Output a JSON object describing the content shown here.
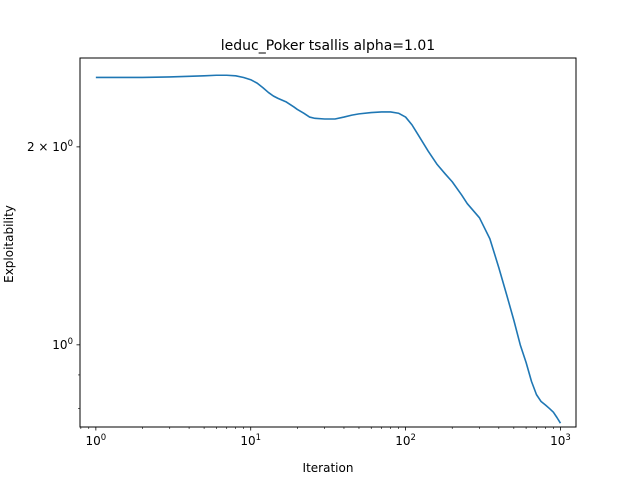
{
  "chart_data": {
    "type": "line",
    "title": "leduc_Poker  tsallis  alpha=1.01",
    "xlabel": "Iteration",
    "ylabel": "Exploitability",
    "xscale": "log",
    "yscale": "log",
    "xlim": [
      0.79,
      1260
    ],
    "ylim": [
      0.75,
      2.73
    ],
    "x_ticks": [
      {
        "value": 1,
        "base": "10",
        "exp": "0"
      },
      {
        "value": 10,
        "base": "10",
        "exp": "1"
      },
      {
        "value": 100,
        "base": "10",
        "exp": "2"
      },
      {
        "value": 1000,
        "base": "10",
        "exp": "3"
      }
    ],
    "y_ticks": [
      {
        "value": 1,
        "mantissa": "",
        "base": "10",
        "exp": "0"
      },
      {
        "value": 2,
        "mantissa": "2 × ",
        "base": "10",
        "exp": "0"
      }
    ],
    "grid": false,
    "series": [
      {
        "color": "#1f77b4",
        "x": [
          1,
          2,
          3,
          4,
          5,
          6,
          7,
          8,
          9,
          10,
          11,
          12,
          13,
          14,
          15,
          17,
          19,
          20,
          22,
          24,
          26,
          30,
          35,
          40,
          45,
          50,
          60,
          70,
          80,
          90,
          100,
          110,
          120,
          140,
          160,
          180,
          200,
          230,
          250,
          300,
          350,
          400,
          450,
          500,
          550,
          600,
          650,
          700,
          750,
          800,
          850,
          900,
          950,
          1000
        ],
        "y": [
          2.55,
          2.55,
          2.555,
          2.56,
          2.565,
          2.57,
          2.57,
          2.565,
          2.55,
          2.53,
          2.5,
          2.46,
          2.42,
          2.39,
          2.37,
          2.34,
          2.3,
          2.28,
          2.25,
          2.22,
          2.21,
          2.205,
          2.205,
          2.22,
          2.235,
          2.245,
          2.255,
          2.26,
          2.26,
          2.25,
          2.22,
          2.16,
          2.09,
          1.97,
          1.88,
          1.82,
          1.77,
          1.69,
          1.64,
          1.56,
          1.45,
          1.31,
          1.19,
          1.09,
          1.0,
          0.94,
          0.88,
          0.84,
          0.82,
          0.81,
          0.8,
          0.79,
          0.775,
          0.76
        ]
      }
    ]
  }
}
